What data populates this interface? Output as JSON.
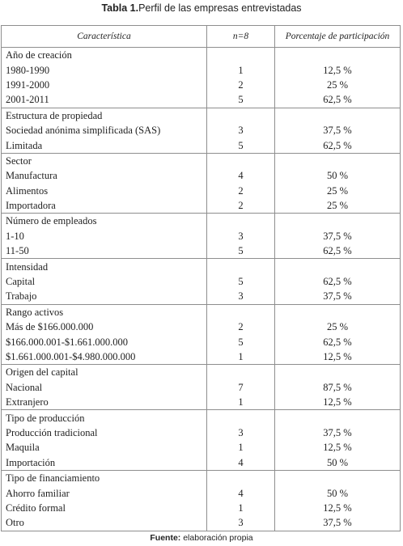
{
  "title": {
    "label": "Tabla 1.",
    "text": "Perfil de las empresas entrevistadas"
  },
  "header": {
    "col1": "Característica",
    "col2": "n=8",
    "col3": "Porcentaje de participación"
  },
  "sections": [
    {
      "heading": "Año de creación",
      "rows": [
        {
          "label": "1980-1990",
          "n": "1",
          "pct": "12,5 %"
        },
        {
          "label": "1991-2000",
          "n": "2",
          "pct": "25 %"
        },
        {
          "label": "2001-2011",
          "n": "5",
          "pct": "62,5 %"
        }
      ]
    },
    {
      "heading": "Estructura de propiedad",
      "rows": [
        {
          "label": "Sociedad anónima simplificada (SAS)",
          "n": "3",
          "pct": "37,5 %"
        },
        {
          "label": "Limitada",
          "n": "5",
          "pct": "62,5 %"
        }
      ]
    },
    {
      "heading": "Sector",
      "rows": [
        {
          "label": "Manufactura",
          "n": "4",
          "pct": "50 %"
        },
        {
          "label": "Alimentos",
          "n": "2",
          "pct": "25 %"
        },
        {
          "label": "Importadora",
          "n": "2",
          "pct": "25 %"
        }
      ]
    },
    {
      "heading": "Número de empleados",
      "rows": [
        {
          "label": "1-10",
          "n": "3",
          "pct": "37,5 %"
        },
        {
          "label": "11-50",
          "n": "5",
          "pct": "62,5 %"
        }
      ]
    },
    {
      "heading": "Intensidad",
      "rows": [
        {
          "label": "Capital",
          "n": "5",
          "pct": "62,5 %"
        },
        {
          "label": "Trabajo",
          "n": "3",
          "pct": "37,5 %"
        }
      ]
    },
    {
      "heading": "Rango activos",
      "rows": [
        {
          "label": "Más de $166.000.000",
          "n": "2",
          "pct": "25 %"
        },
        {
          "label": "$166.000.001-$1.661.000.000",
          "n": "5",
          "pct": "62,5 %"
        },
        {
          "label": "$1.661.000.001-$4.980.000.000",
          "n": "1",
          "pct": "12,5 %"
        }
      ]
    },
    {
      "heading": "Origen del capital",
      "rows": [
        {
          "label": "Nacional",
          "n": "7",
          "pct": "87,5 %"
        },
        {
          "label": "Extranjero",
          "n": "1",
          "pct": "12,5 %"
        }
      ]
    },
    {
      "heading": "Tipo de producción",
      "rows": [
        {
          "label": "Producción tradicional",
          "n": "3",
          "pct": "37,5 %"
        },
        {
          "label": "Maquila",
          "n": "1",
          "pct": "12,5 %"
        },
        {
          "label": "Importación",
          "n": "4",
          "pct": "50 %"
        }
      ]
    },
    {
      "heading": "Tipo de financiamiento",
      "rows": [
        {
          "label": "Ahorro familiar",
          "n": "4",
          "pct": "50 %"
        },
        {
          "label": "Crédito formal",
          "n": "1",
          "pct": "12,5 %"
        },
        {
          "label": "Otro",
          "n": "3",
          "pct": "37,5 %"
        }
      ]
    }
  ],
  "source": {
    "label": "Fuente:",
    "text": "elaboración propia"
  }
}
